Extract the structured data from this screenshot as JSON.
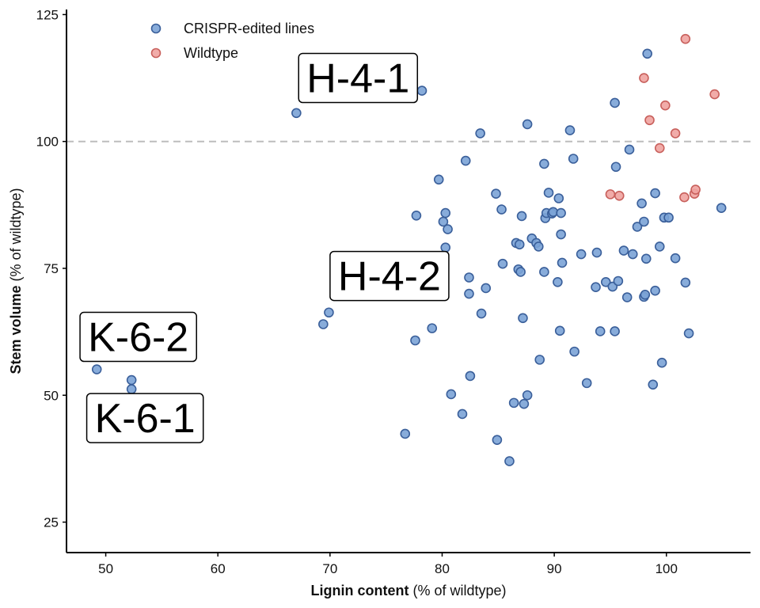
{
  "chart_data": {
    "type": "scatter",
    "xlabel_bold": "Lignin content",
    "xlabel_rest": " (% of wildtype)",
    "ylabel_bold": "Stem volume",
    "ylabel_rest": " (% of wildtype)",
    "xlim": [
      46.5,
      107.5
    ],
    "ylim": [
      19,
      126
    ],
    "xticks": [
      50,
      60,
      70,
      80,
      90,
      100
    ],
    "yticks": [
      25,
      50,
      75,
      100,
      125
    ],
    "reference_line_y": 100,
    "grid": false,
    "legend_position": "top-left",
    "series": [
      {
        "name": "CRISPR-edited lines",
        "color": "#7ba3d6",
        "stroke": "#3a5f9a",
        "points": [
          [
            49.2,
            55.1
          ],
          [
            52.3,
            53.0
          ],
          [
            52.3,
            51.2
          ],
          [
            67.0,
            105.6
          ],
          [
            69.4,
            64.0
          ],
          [
            69.9,
            66.3
          ],
          [
            78.2,
            110.0
          ],
          [
            76.7,
            42.4
          ],
          [
            77.6,
            60.8
          ],
          [
            77.7,
            85.4
          ],
          [
            79.1,
            63.2
          ],
          [
            79.7,
            92.5
          ],
          [
            80.1,
            84.2
          ],
          [
            80.3,
            85.9
          ],
          [
            80.3,
            79.1
          ],
          [
            80.5,
            82.7
          ],
          [
            80.8,
            50.2
          ],
          [
            81.8,
            46.3
          ],
          [
            82.1,
            96.2
          ],
          [
            82.4,
            73.2
          ],
          [
            82.4,
            70.0
          ],
          [
            82.5,
            53.8
          ],
          [
            83.4,
            101.6
          ],
          [
            83.5,
            66.1
          ],
          [
            83.9,
            71.1
          ],
          [
            84.8,
            89.7
          ],
          [
            84.9,
            41.2
          ],
          [
            85.3,
            86.6
          ],
          [
            85.4,
            75.9
          ],
          [
            86.4,
            48.5
          ],
          [
            86.6,
            80.0
          ],
          [
            86.9,
            79.7
          ],
          [
            86.8,
            74.8
          ],
          [
            87.0,
            74.3
          ],
          [
            87.1,
            85.3
          ],
          [
            87.2,
            65.2
          ],
          [
            87.3,
            48.3
          ],
          [
            87.6,
            103.4
          ],
          [
            87.6,
            50.0
          ],
          [
            86.0,
            37.0
          ],
          [
            88.0,
            80.9
          ],
          [
            88.4,
            80.0
          ],
          [
            88.6,
            79.3
          ],
          [
            88.7,
            57.0
          ],
          [
            89.1,
            95.6
          ],
          [
            89.1,
            74.3
          ],
          [
            89.2,
            84.9
          ],
          [
            89.3,
            85.9
          ],
          [
            89.5,
            89.9
          ],
          [
            89.8,
            85.8
          ],
          [
            89.9,
            86.1
          ],
          [
            90.3,
            72.3
          ],
          [
            90.4,
            88.8
          ],
          [
            90.5,
            62.7
          ],
          [
            90.6,
            81.7
          ],
          [
            90.6,
            85.9
          ],
          [
            90.7,
            76.1
          ],
          [
            91.4,
            102.2
          ],
          [
            91.7,
            96.6
          ],
          [
            91.8,
            58.6
          ],
          [
            92.4,
            77.8
          ],
          [
            92.9,
            52.4
          ],
          [
            93.7,
            71.3
          ],
          [
            93.8,
            78.1
          ],
          [
            94.1,
            62.6
          ],
          [
            94.6,
            72.3
          ],
          [
            95.2,
            71.4
          ],
          [
            95.4,
            107.6
          ],
          [
            95.4,
            62.6
          ],
          [
            95.5,
            95.0
          ],
          [
            95.7,
            72.5
          ],
          [
            96.2,
            78.5
          ],
          [
            96.5,
            69.3
          ],
          [
            96.7,
            98.4
          ],
          [
            97.0,
            77.8
          ],
          [
            97.4,
            83.2
          ],
          [
            97.8,
            87.8
          ],
          [
            98.0,
            84.2
          ],
          [
            98.0,
            69.4
          ],
          [
            98.1,
            69.8
          ],
          [
            98.2,
            76.9
          ],
          [
            98.3,
            117.3
          ],
          [
            98.8,
            52.1
          ],
          [
            99.0,
            70.6
          ],
          [
            99.0,
            89.8
          ],
          [
            99.4,
            79.3
          ],
          [
            99.6,
            56.4
          ],
          [
            99.8,
            85.0
          ],
          [
            100.2,
            85.0
          ],
          [
            100.8,
            77.0
          ],
          [
            101.7,
            72.2
          ],
          [
            102.0,
            62.2
          ],
          [
            104.9,
            86.9
          ]
        ]
      },
      {
        "name": "Wildtype",
        "color": "#f0a3a0",
        "stroke": "#c8605c",
        "points": [
          [
            98.0,
            112.5
          ],
          [
            98.5,
            104.2
          ],
          [
            99.4,
            98.7
          ],
          [
            99.9,
            107.1
          ],
          [
            100.8,
            101.6
          ],
          [
            101.7,
            120.2
          ],
          [
            101.6,
            89.0
          ],
          [
            102.5,
            89.7
          ],
          [
            102.6,
            90.5
          ],
          [
            104.3,
            109.3
          ],
          [
            95.0,
            89.6
          ],
          [
            95.8,
            89.3
          ]
        ]
      }
    ],
    "annotations": [
      {
        "text": "H-4-1",
        "x": 72.5,
        "y": 112.5
      },
      {
        "text": "H-4-2",
        "x": 75.3,
        "y": 73.5
      },
      {
        "text": "K-6-2",
        "x": 52.9,
        "y": 61.5
      },
      {
        "text": "K-6-1",
        "x": 53.5,
        "y": 45.5
      }
    ]
  }
}
